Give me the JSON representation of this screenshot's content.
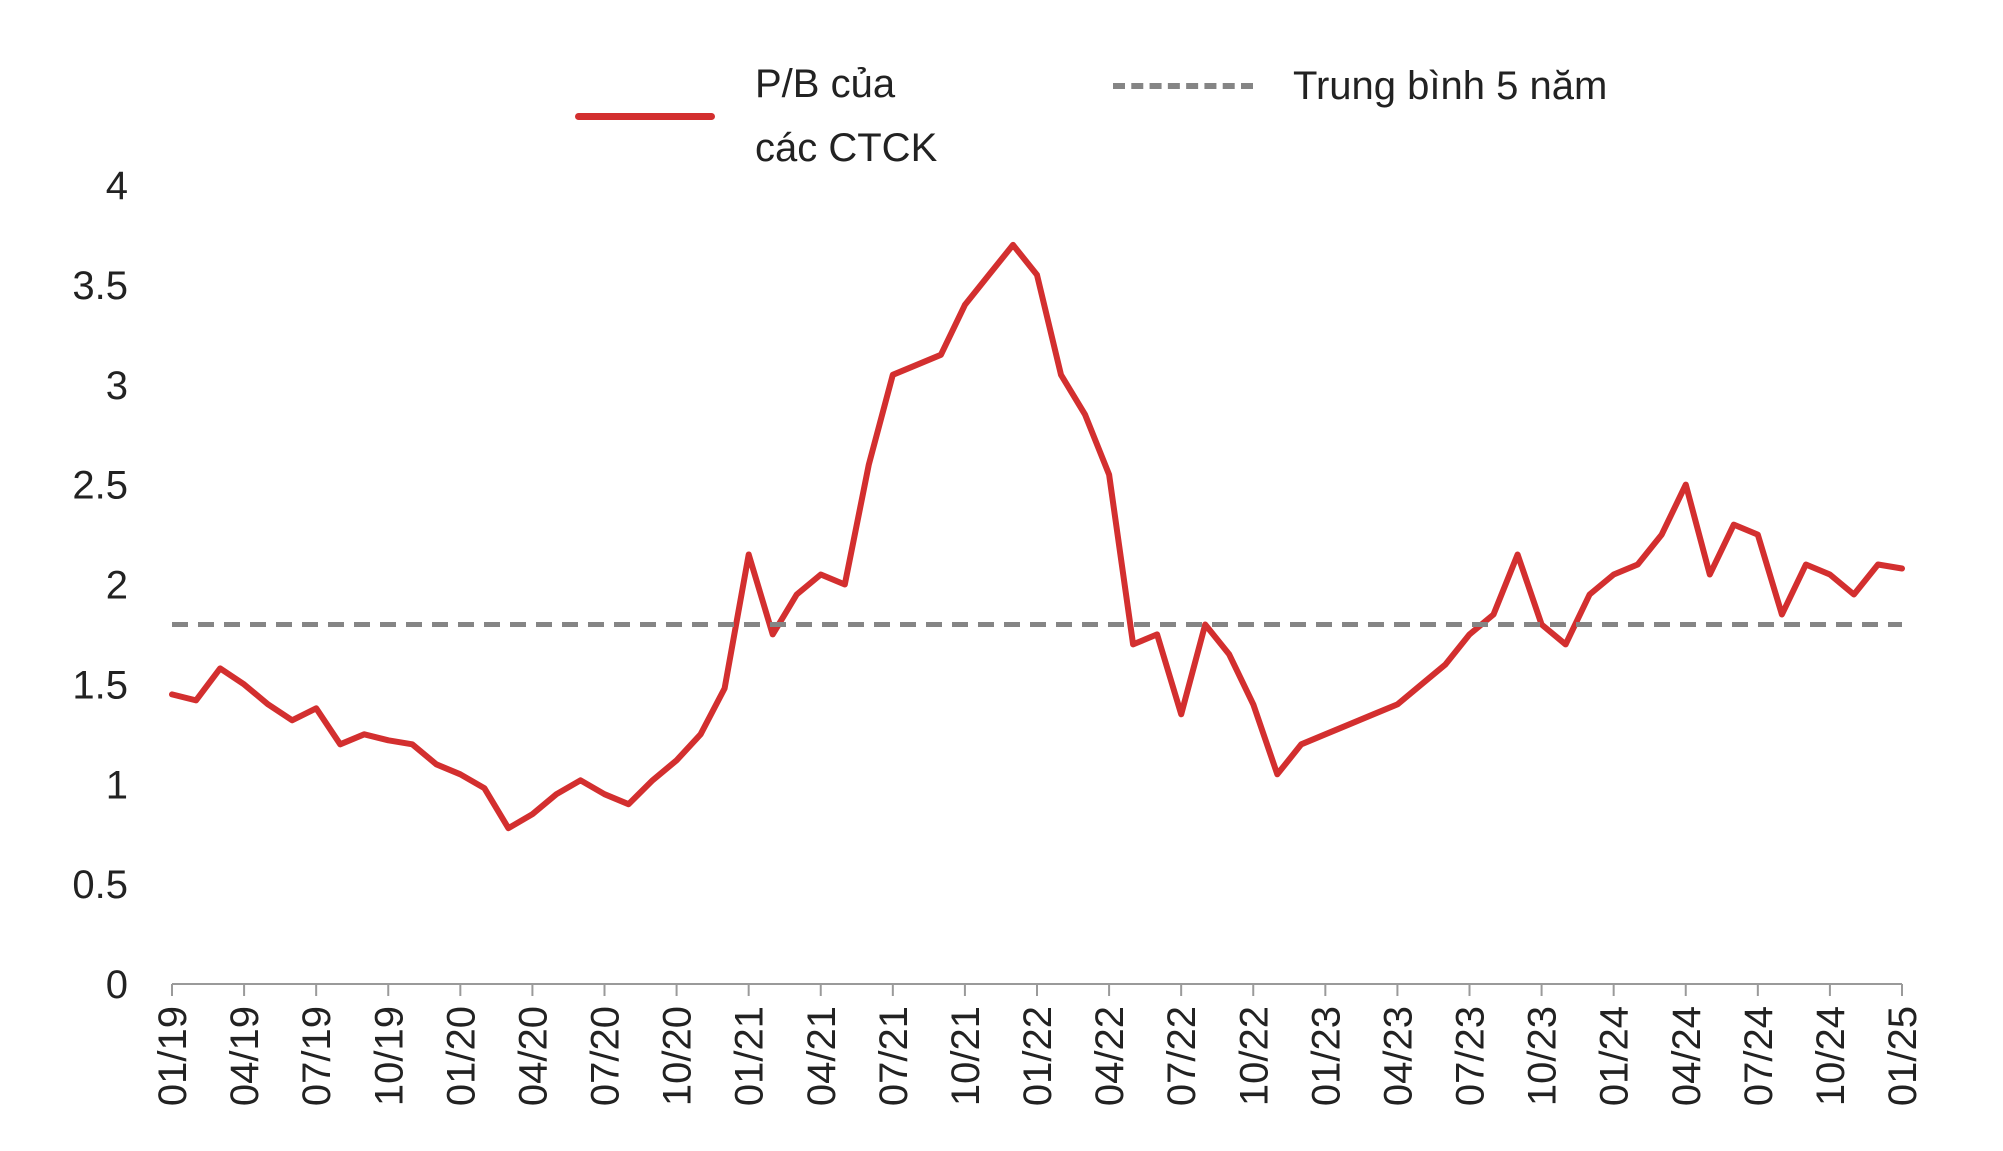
{
  "chart_data": {
    "type": "line",
    "title": "",
    "xlabel": "",
    "ylabel": "",
    "ylim": [
      0,
      4
    ],
    "yticks": [
      "0",
      "0.5",
      "1",
      "1.5",
      "2",
      "2.5",
      "3",
      "3.5",
      "4"
    ],
    "xticks": [
      "01/19",
      "04/19",
      "07/19",
      "10/19",
      "01/20",
      "04/20",
      "07/20",
      "10/20",
      "01/21",
      "04/21",
      "07/21",
      "10/21",
      "01/22",
      "04/22",
      "07/22",
      "10/22",
      "01/23",
      "04/23",
      "07/23",
      "10/23",
      "01/24",
      "04/24",
      "07/24",
      "10/24",
      "01/25"
    ],
    "grid": false,
    "legend_position": "top-center",
    "series": [
      {
        "name": "P/B của các CTCK",
        "color": "#d32f2f",
        "style": "solid",
        "x": [
          "2019-01",
          "2019-02",
          "2019-03",
          "2019-04",
          "2019-05",
          "2019-06",
          "2019-07",
          "2019-08",
          "2019-09",
          "2019-10",
          "2019-11",
          "2019-12",
          "2020-01",
          "2020-02",
          "2020-03",
          "2020-04",
          "2020-05",
          "2020-06",
          "2020-07",
          "2020-08",
          "2020-09",
          "2020-10",
          "2020-11",
          "2020-12",
          "2021-01",
          "2021-02",
          "2021-03",
          "2021-04",
          "2021-05",
          "2021-06",
          "2021-07",
          "2021-08",
          "2021-09",
          "2021-10",
          "2021-11",
          "2021-12",
          "2022-01",
          "2022-02",
          "2022-03",
          "2022-04",
          "2022-05",
          "2022-06",
          "2022-07",
          "2022-08",
          "2022-09",
          "2022-10",
          "2022-11",
          "2022-12",
          "2023-01",
          "2023-02",
          "2023-03",
          "2023-04",
          "2023-05",
          "2023-06",
          "2023-07",
          "2023-08",
          "2023-09",
          "2023-10",
          "2023-11",
          "2023-12",
          "2024-01",
          "2024-02",
          "2024-03",
          "2024-04",
          "2024-05",
          "2024-06",
          "2024-07",
          "2024-08",
          "2024-09",
          "2024-10",
          "2024-11",
          "2024-12",
          "2025-01"
        ],
        "values": [
          1.45,
          1.42,
          1.58,
          1.5,
          1.4,
          1.32,
          1.38,
          1.2,
          1.25,
          1.22,
          1.2,
          1.1,
          1.05,
          0.98,
          0.78,
          0.85,
          0.95,
          1.02,
          0.95,
          0.9,
          1.02,
          1.12,
          1.25,
          1.48,
          2.15,
          1.75,
          1.95,
          2.05,
          2.0,
          2.6,
          3.05,
          3.1,
          3.15,
          3.4,
          3.55,
          3.7,
          3.55,
          3.05,
          2.85,
          2.55,
          1.7,
          1.75,
          1.35,
          1.8,
          1.65,
          1.4,
          1.05,
          1.2,
          1.25,
          1.3,
          1.35,
          1.4,
          1.5,
          1.6,
          1.75,
          1.85,
          2.15,
          1.8,
          1.7,
          1.95,
          2.05,
          2.1,
          2.25,
          2.5,
          2.05,
          2.3,
          2.25,
          1.85,
          2.1,
          2.05,
          1.95,
          2.1,
          2.08
        ]
      },
      {
        "name": "Trung bình 5 năm",
        "color": "#858585",
        "style": "dashed",
        "x": [
          "2019-01",
          "2025-01"
        ],
        "values": [
          1.8,
          1.8
        ]
      }
    ]
  }
}
